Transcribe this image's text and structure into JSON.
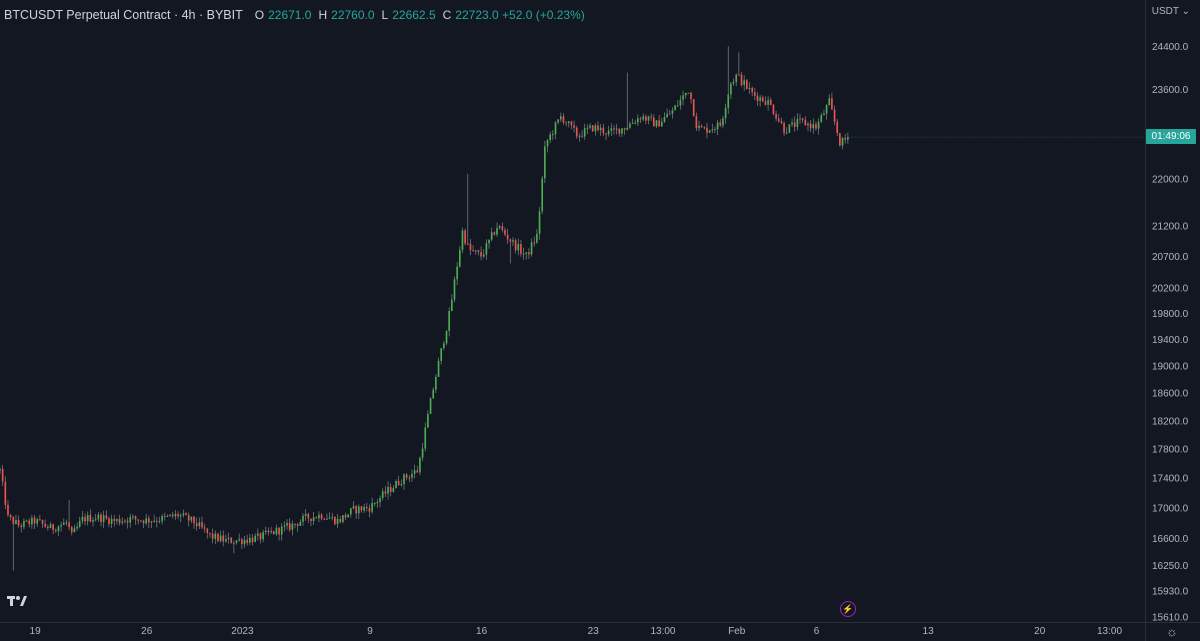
{
  "header": {
    "symbol": "BTCUSDT Perpetual Contract · 4h · BYBIT",
    "o_label": "O",
    "o_value": "22671.0",
    "h_label": "H",
    "h_value": "22760.0",
    "l_label": "L",
    "l_value": "22662.5",
    "c_label": "C",
    "c_value": "22723.0 +52.0 (+0.23%)"
  },
  "currency": "USDT",
  "countdown": "01:49:06",
  "colors": {
    "up": "#26a69a",
    "down": "#ef5350",
    "up_candle": "#4caf50",
    "background": "#131722",
    "axis_text": "#b2b5be",
    "border": "#2a2e39"
  },
  "icons": [
    "tradingview-logo-icon",
    "flash-icon",
    "settings-icon",
    "chevron-down-icon"
  ],
  "chart_data": {
    "type": "candlestick",
    "y_scale": "log",
    "ylim": [
      15540,
      25300
    ],
    "y_ticks": [
      24400,
      23600,
      22800,
      22000,
      21200,
      20700,
      20200,
      19800,
      19400,
      19000,
      18600,
      18200,
      17800,
      17400,
      17000,
      16600,
      16250,
      15930,
      15610
    ],
    "y_tick_labels": [
      "24400.0",
      "23600.0",
      "22800.0",
      "22000.0",
      "21200.0",
      "20700.0",
      "20200.0",
      "19800.0",
      "19400.0",
      "19000.0",
      "18600.0",
      "18200.0",
      "17800.0",
      "17400.0",
      "17000.0",
      "16600.0",
      "16250.0",
      "15930.0",
      "15610.0"
    ],
    "x_tick_labels": [
      "19",
      "26",
      "2023",
      "9",
      "16",
      "23",
      "13:00",
      "Feb",
      "6",
      "13",
      "20",
      "13:00"
    ],
    "x_tick_days": [
      0,
      7,
      13,
      21,
      28,
      35,
      39.375,
      44,
      49,
      56,
      63,
      67.375
    ],
    "x_axis": "days since Dec 19, 2022 (x tick 19 = day 0)",
    "x_range_days": [
      -2.2,
      69.6
    ],
    "last_price": 22723,
    "series_path": [
      [
        -2.2,
        17500
      ],
      [
        -1.7,
        16860
      ],
      [
        -1,
        16760
      ],
      [
        0,
        16820
      ],
      [
        1,
        16720
      ],
      [
        2,
        16800
      ],
      [
        2.3,
        16620
      ],
      [
        3,
        16850
      ],
      [
        4,
        16870
      ],
      [
        5,
        16820
      ],
      [
        6,
        16850
      ],
      [
        7,
        16830
      ],
      [
        8,
        16850
      ],
      [
        9,
        16900
      ],
      [
        10,
        16800
      ],
      [
        11,
        16620
      ],
      [
        12,
        16560
      ],
      [
        13,
        16570
      ],
      [
        14,
        16600
      ],
      [
        15,
        16680
      ],
      [
        16,
        16750
      ],
      [
        17,
        16860
      ],
      [
        18,
        16900
      ],
      [
        19,
        16820
      ],
      [
        20,
        16970
      ],
      [
        21,
        17000
      ],
      [
        22,
        17200
      ],
      [
        23,
        17380
      ],
      [
        24,
        17500
      ],
      [
        25,
        18700
      ],
      [
        26,
        19800
      ],
      [
        26.8,
        21100
      ],
      [
        27.2,
        20800
      ],
      [
        28,
        20700
      ],
      [
        29,
        21200
      ],
      [
        30,
        20900
      ],
      [
        30.8,
        20700
      ],
      [
        31.5,
        21050
      ],
      [
        32,
        22600
      ],
      [
        33,
        23100
      ],
      [
        34,
        22750
      ],
      [
        35,
        22900
      ],
      [
        36,
        22800
      ],
      [
        37,
        22900
      ],
      [
        38,
        23100
      ],
      [
        39,
        22950
      ],
      [
        40,
        23200
      ],
      [
        41,
        23600
      ],
      [
        41.5,
        22900
      ],
      [
        42,
        22850
      ],
      [
        43,
        22950
      ],
      [
        43.6,
        23700
      ],
      [
        44,
        23850
      ],
      [
        45,
        23500
      ],
      [
        46,
        23350
      ],
      [
        47,
        22850
      ],
      [
        48,
        23000
      ],
      [
        49,
        22900
      ],
      [
        49.8,
        23350
      ],
      [
        50.5,
        22600
      ],
      [
        51,
        22723
      ]
    ],
    "notable_wicks": [
      [
        -1.3,
        16180
      ],
      [
        2.1,
        17100
      ],
      [
        12.5,
        16400
      ],
      [
        29.8,
        20580
      ],
      [
        27.1,
        22080
      ],
      [
        43.4,
        24400
      ],
      [
        37.2,
        23900
      ],
      [
        44.2,
        24280
      ]
    ]
  }
}
